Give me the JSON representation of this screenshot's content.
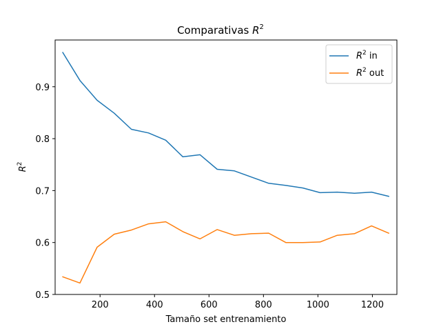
{
  "chart_data": {
    "type": "line",
    "title_main": "Comparativas ",
    "title_sym": "R",
    "title_sup": "2",
    "xlabel": "Tamaño set entrenamiento",
    "ylabel_sym": "R",
    "ylabel_sup": "2",
    "xlim": [
      35,
      1290
    ],
    "ylim": [
      0.5,
      0.99
    ],
    "xticks": [
      200,
      400,
      600,
      800,
      1000,
      1200
    ],
    "yticks": [
      0.5,
      0.6,
      0.7,
      0.8,
      0.9
    ],
    "ytick_labels": [
      "0.5",
      "0.6",
      "0.7",
      "0.8",
      "0.9"
    ],
    "grid": false,
    "legend_position": "top-right",
    "x": [
      63,
      126,
      189,
      252,
      315,
      378,
      441,
      504,
      567,
      630,
      693,
      756,
      819,
      882,
      945,
      1008,
      1071,
      1134,
      1197,
      1260
    ],
    "series": [
      {
        "name_sym": "R",
        "name_sup": "2",
        "name_rest": " in",
        "color": "#1f77b4",
        "values": [
          0.966,
          0.912,
          0.874,
          0.849,
          0.818,
          0.811,
          0.797,
          0.765,
          0.769,
          0.741,
          0.738,
          0.726,
          0.714,
          0.71,
          0.705,
          0.696,
          0.697,
          0.695,
          0.697,
          0.689
        ]
      },
      {
        "name_sym": "R",
        "name_sup": "2",
        "name_rest": " out",
        "color": "#ff7f0e",
        "values": [
          0.534,
          0.522,
          0.591,
          0.616,
          0.624,
          0.636,
          0.64,
          0.621,
          0.607,
          0.625,
          0.614,
          0.617,
          0.618,
          0.6,
          0.6,
          0.601,
          0.614,
          0.617,
          0.632,
          0.618
        ]
      }
    ]
  }
}
